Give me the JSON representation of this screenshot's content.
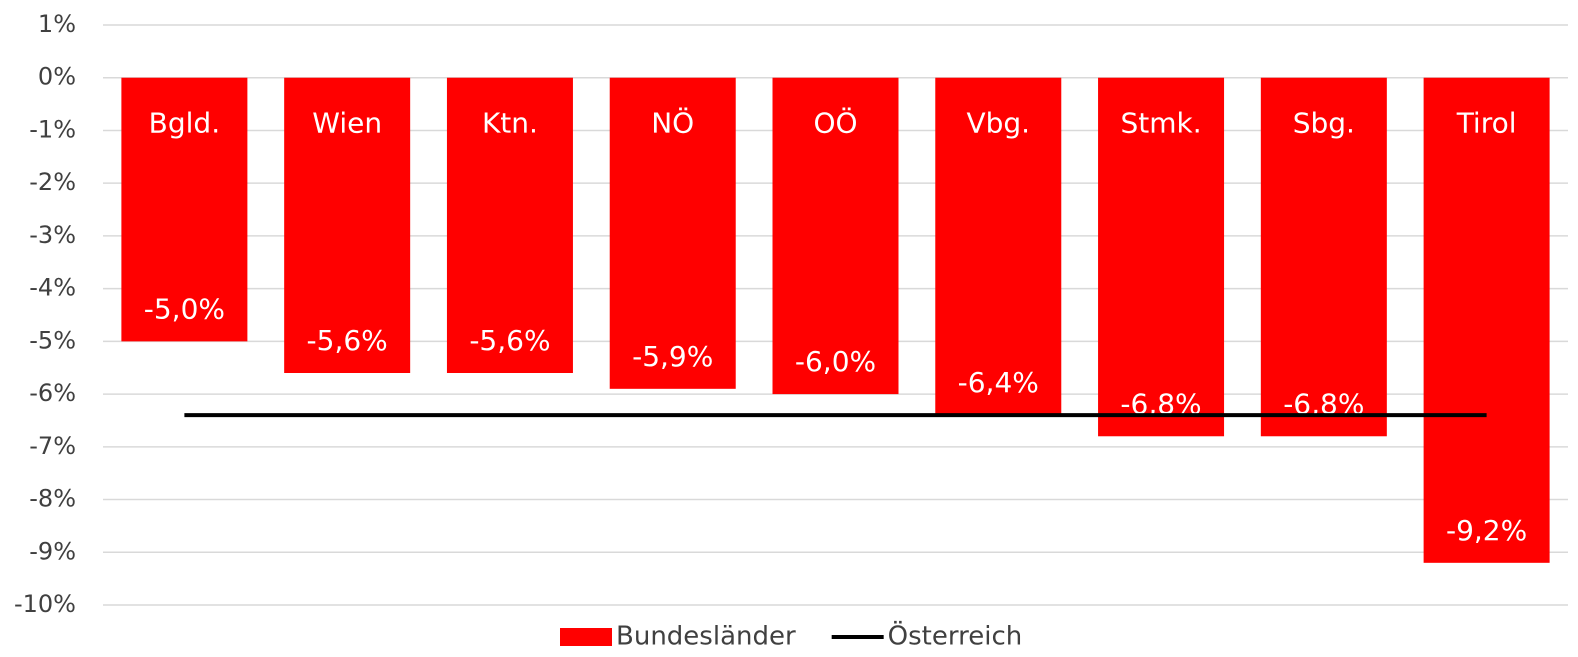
{
  "chart_data": {
    "type": "bar",
    "categories": [
      "Bgld.",
      "Wien",
      "Ktn.",
      "NÖ",
      "OÖ",
      "Vbg.",
      "Stmk.",
      "Sbg.",
      "Tirol"
    ],
    "series": [
      {
        "name": "Bundesländer",
        "type": "bar",
        "color": "#ff0000",
        "values": [
          -5.0,
          -5.6,
          -5.6,
          -5.9,
          -6.0,
          -6.4,
          -6.8,
          -6.8,
          -9.2
        ],
        "value_labels": [
          "-5,0%",
          "-5,6%",
          "-5,6%",
          "-5,9%",
          "-6,0%",
          "-6,4%",
          "-6,8%",
          "-6,8%",
          "-9,2%"
        ]
      },
      {
        "name": "Österreich",
        "type": "line",
        "color": "#000000",
        "values": [
          -6.4,
          -6.4,
          -6.4,
          -6.4,
          -6.4,
          -6.4,
          -6.4,
          -6.4,
          -6.4
        ]
      }
    ],
    "ylim": [
      -10,
      1
    ],
    "yticks": [
      {
        "value": 1,
        "label": "1%"
      },
      {
        "value": 0,
        "label": "0%"
      },
      {
        "value": -1,
        "label": "-1%"
      },
      {
        "value": -2,
        "label": "-2%"
      },
      {
        "value": -3,
        "label": "-3%"
      },
      {
        "value": -4,
        "label": "-4%"
      },
      {
        "value": -5,
        "label": "-5%"
      },
      {
        "value": -6,
        "label": "-6%"
      },
      {
        "value": -7,
        "label": "-7%"
      },
      {
        "value": -8,
        "label": "-8%"
      },
      {
        "value": -9,
        "label": "-9%"
      },
      {
        "value": -10,
        "label": "-10%"
      }
    ],
    "grid": true,
    "legend": "bottom"
  }
}
